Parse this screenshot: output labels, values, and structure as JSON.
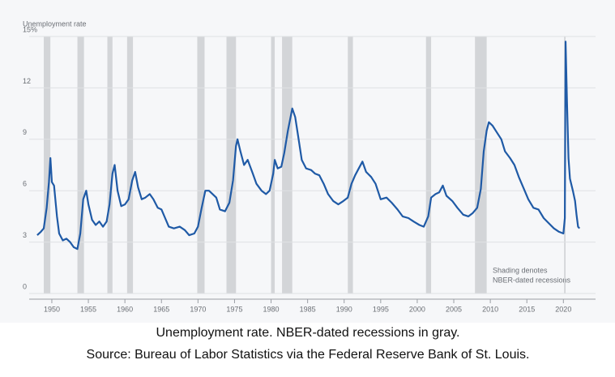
{
  "chart_data": {
    "type": "line",
    "ylabel": "Unemployment rate",
    "color": "#1f5aa6",
    "recession_color": "#d3d5d8",
    "grid": true,
    "annotation": [
      "Shading denotes",
      "NBER-dated recessions"
    ],
    "caption": [
      "Unemployment rate. NBER-dated recessions in gray.",
      "Source: Bureau of Labor Statistics via the Federal Reserve Bank of St. Louis."
    ],
    "xlim": [
      1946.9,
      2024.4
    ],
    "xticks": [
      1950,
      1955,
      1960,
      1965,
      1970,
      1975,
      1980,
      1985,
      1990,
      1995,
      2000,
      2005,
      2010,
      2015,
      2020
    ],
    "ylim": [
      0,
      15
    ],
    "yticks": [
      0,
      3,
      6,
      9,
      12,
      {
        "value": 15,
        "label": "15%"
      }
    ],
    "recessions": [
      [
        1948.9,
        1949.8
      ],
      [
        1953.5,
        1954.4
      ],
      [
        1957.6,
        1958.3
      ],
      [
        1960.3,
        1961.1
      ],
      [
        1969.9,
        1970.9
      ],
      [
        1973.9,
        1975.2
      ],
      [
        1980.0,
        1980.5
      ],
      [
        1981.5,
        1982.9
      ],
      [
        1990.5,
        1991.2
      ],
      [
        2001.2,
        2001.9
      ],
      [
        2007.9,
        2009.5
      ],
      [
        2020.1,
        2020.3
      ]
    ],
    "x": [
      1948.0,
      1948.5,
      1948.9,
      1949.3,
      1949.6,
      1949.8,
      1950.0,
      1950.3,
      1950.7,
      1951.0,
      1951.5,
      1952.0,
      1952.5,
      1953.0,
      1953.5,
      1953.9,
      1954.3,
      1954.7,
      1955.0,
      1955.5,
      1956.0,
      1956.5,
      1957.0,
      1957.5,
      1957.9,
      1958.3,
      1958.6,
      1959.0,
      1959.5,
      1960.0,
      1960.5,
      1961.0,
      1961.4,
      1961.8,
      1962.3,
      1962.8,
      1963.4,
      1963.9,
      1964.5,
      1965.0,
      1965.5,
      1966.0,
      1966.7,
      1967.5,
      1968.2,
      1968.8,
      1969.5,
      1970.0,
      1970.5,
      1971.0,
      1971.5,
      1972.0,
      1972.5,
      1973.0,
      1973.7,
      1974.3,
      1974.8,
      1975.2,
      1975.4,
      1975.8,
      1976.3,
      1976.8,
      1977.5,
      1978.0,
      1978.7,
      1979.3,
      1979.8,
      1980.3,
      1980.5,
      1980.9,
      1981.4,
      1981.8,
      1982.3,
      1982.9,
      1983.3,
      1983.7,
      1984.2,
      1984.8,
      1985.5,
      1986.0,
      1986.6,
      1987.2,
      1987.8,
      1988.5,
      1989.2,
      1989.9,
      1990.5,
      1991.0,
      1991.5,
      1992.0,
      1992.5,
      1993.0,
      1993.7,
      1994.3,
      1995.0,
      1995.8,
      1996.5,
      1997.3,
      1998.0,
      1998.8,
      1999.5,
      2000.3,
      2000.9,
      2001.5,
      2001.9,
      2002.5,
      2003.0,
      2003.5,
      2004.0,
      2004.8,
      2005.5,
      2006.3,
      2007.0,
      2007.6,
      2008.2,
      2008.7,
      2009.1,
      2009.5,
      2009.8,
      2010.3,
      2010.9,
      2011.5,
      2012.0,
      2012.7,
      2013.3,
      2013.9,
      2014.6,
      2015.2,
      2015.9,
      2016.6,
      2017.3,
      2018.0,
      2018.7,
      2019.4,
      2020.0,
      2020.2,
      2020.3,
      2020.5,
      2020.7,
      2020.9,
      2021.3,
      2021.6,
      2021.8,
      2022.0,
      2022.2
    ],
    "values": [
      3.4,
      3.6,
      3.8,
      5.0,
      6.5,
      7.9,
      6.5,
      6.3,
      4.5,
      3.5,
      3.1,
      3.2,
      3.0,
      2.7,
      2.6,
      3.5,
      5.5,
      6.0,
      5.2,
      4.3,
      4.0,
      4.2,
      3.9,
      4.2,
      5.2,
      7.0,
      7.5,
      6.0,
      5.1,
      5.2,
      5.5,
      6.6,
      7.1,
      6.2,
      5.5,
      5.6,
      5.8,
      5.5,
      5.0,
      4.9,
      4.4,
      3.9,
      3.8,
      3.9,
      3.7,
      3.4,
      3.5,
      3.9,
      5.0,
      6.0,
      6.0,
      5.8,
      5.6,
      4.9,
      4.8,
      5.3,
      6.6,
      8.6,
      9.0,
      8.3,
      7.5,
      7.8,
      7.0,
      6.4,
      6.0,
      5.8,
      6.0,
      7.0,
      7.8,
      7.3,
      7.4,
      8.2,
      9.5,
      10.8,
      10.3,
      9.2,
      7.8,
      7.3,
      7.2,
      7.0,
      6.9,
      6.4,
      5.8,
      5.4,
      5.2,
      5.4,
      5.6,
      6.4,
      6.9,
      7.3,
      7.7,
      7.1,
      6.8,
      6.4,
      5.5,
      5.6,
      5.3,
      4.9,
      4.5,
      4.4,
      4.2,
      4.0,
      3.9,
      4.5,
      5.6,
      5.8,
      5.9,
      6.3,
      5.7,
      5.4,
      5.0,
      4.6,
      4.5,
      4.7,
      5.0,
      6.1,
      8.3,
      9.5,
      10.0,
      9.8,
      9.4,
      9.0,
      8.3,
      7.9,
      7.5,
      6.8,
      6.1,
      5.5,
      5.0,
      4.9,
      4.4,
      4.1,
      3.8,
      3.6,
      3.5,
      4.4,
      14.7,
      11.1,
      7.9,
      6.7,
      6.0,
      5.4,
      4.6,
      3.9,
      3.8
    ]
  }
}
